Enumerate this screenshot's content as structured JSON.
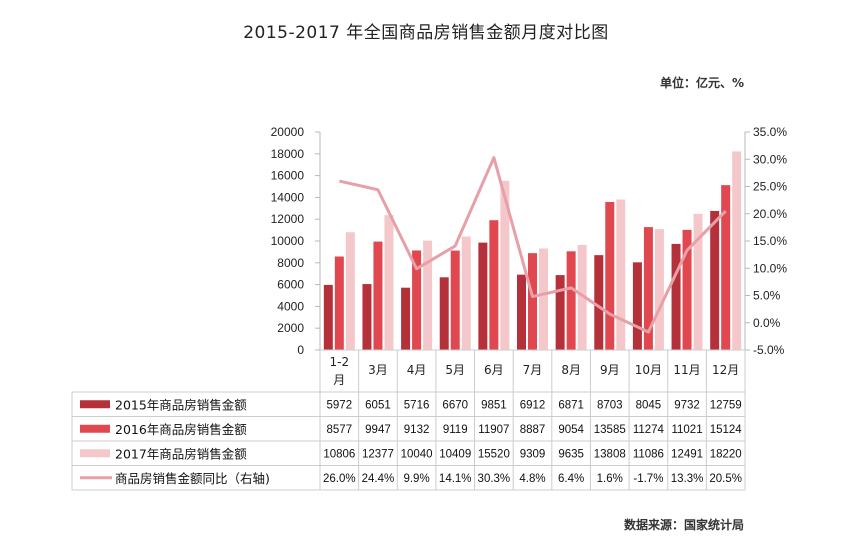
{
  "title": "2015-2017 年全国商品房销售金额月度对比图",
  "unit": "单位：亿元、%",
  "source": "数据来源：国家统计局",
  "colors": {
    "s2015": "#b5313a",
    "s2016": "#e0474f",
    "s2017": "#f4c8cb",
    "yoy": "#e7a0a8",
    "axis": "#b8b8b8",
    "grid": "#cccccc"
  },
  "chart_data": {
    "type": "bar",
    "categories": [
      "1-2月",
      "3月",
      "4月",
      "5月",
      "6月",
      "7月",
      "8月",
      "9月",
      "10月",
      "11月",
      "12月"
    ],
    "series": [
      {
        "name": "2015年商品房销售金额",
        "type": "bar",
        "values": [
          5972,
          6051,
          5716,
          6670,
          9851,
          6912,
          6871,
          8703,
          8045,
          9732,
          12759
        ]
      },
      {
        "name": "2016年商品房销售金额",
        "type": "bar",
        "values": [
          8577,
          9947,
          9132,
          9119,
          11907,
          8887,
          9054,
          13585,
          11274,
          11021,
          15124
        ]
      },
      {
        "name": "2017年商品房销售金额",
        "type": "bar",
        "values": [
          10806,
          12377,
          10040,
          10409,
          15520,
          9309,
          9635,
          13808,
          11086,
          12491,
          18220
        ]
      },
      {
        "name": "商品房销售金额同比（右轴)",
        "type": "line",
        "axis": "right",
        "values": [
          26.0,
          24.4,
          9.9,
          14.1,
          30.3,
          4.8,
          6.4,
          1.6,
          -1.7,
          13.3,
          20.5
        ]
      }
    ],
    "table_cells": [
      [
        "5972",
        "6051",
        "5716",
        "6670",
        "9851",
        "6912",
        "6871",
        "8703",
        "8045",
        "9732",
        "12759"
      ],
      [
        "8577",
        "9947",
        "9132",
        "9119",
        "11907",
        "8887",
        "9054",
        "13585",
        "11274",
        "11021",
        "15124"
      ],
      [
        "10806",
        "12377",
        "10040",
        "10409",
        "15520",
        "9309",
        "9635",
        "13808",
        "11086",
        "12491",
        "18220"
      ],
      [
        "26.0%",
        "24.4%",
        "9.9%",
        "14.1%",
        "30.3%",
        "4.8%",
        "6.4%",
        "1.6%",
        "-1.7%",
        "13.3%",
        "20.5%"
      ]
    ],
    "y_left": {
      "min": 0,
      "max": 20000,
      "step": 2000,
      "ticks": [
        "0",
        "2000",
        "4000",
        "6000",
        "8000",
        "10000",
        "12000",
        "14000",
        "16000",
        "18000",
        "20000"
      ]
    },
    "y_right": {
      "min": -5,
      "max": 35,
      "step": 5,
      "ticks": [
        "-5.0%",
        "0.0%",
        "5.0%",
        "10.0%",
        "15.0%",
        "20.0%",
        "25.0%",
        "30.0%",
        "35.0%"
      ]
    },
    "grid": false,
    "legend": "table-below"
  }
}
